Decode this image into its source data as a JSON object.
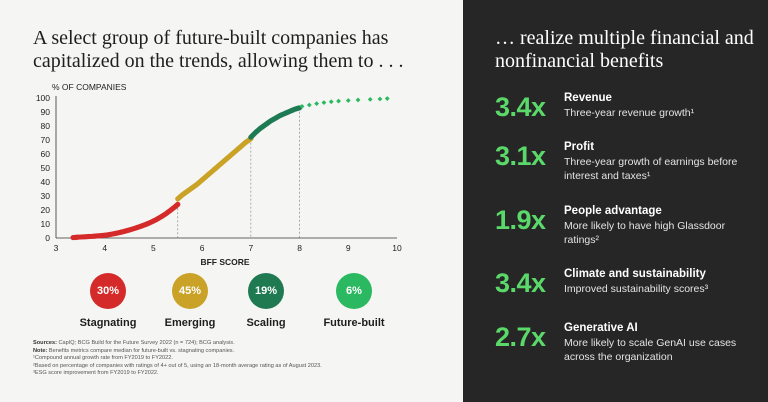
{
  "left": {
    "headline": "A select group of future-built companies has capitalized on the trends, allowing them to . . ."
  },
  "right": {
    "headline": "… realize multiple financial and nonfinancial benefits",
    "metrics": [
      {
        "value": "3.4x",
        "name": "Revenue",
        "desc": "Three-year revenue growth¹"
      },
      {
        "value": "3.1x",
        "name": "Profit",
        "desc": "Three-year growth of earnings before interest and taxes¹"
      },
      {
        "value": "1.9x",
        "name": "People advantage",
        "desc": "More likely to have high Glassdoor ratings²"
      },
      {
        "value": "3.4x",
        "name": "Climate and sustainability",
        "desc": "Improved sustainability scores³"
      },
      {
        "value": "2.7x",
        "name": "Generative AI",
        "desc": "More likely to scale GenAI use cases across the organization"
      }
    ]
  },
  "segments": [
    {
      "pct": "30%",
      "label": "Stagnating",
      "color": "#d42a2a"
    },
    {
      "pct": "45%",
      "label": "Emerging",
      "color": "#c9a227"
    },
    {
      "pct": "19%",
      "label": "Scaling",
      "color": "#1f7a52"
    },
    {
      "pct": "6%",
      "label": "Future-built",
      "color": "#2ab860"
    }
  ],
  "notes": {
    "sources_label": "Sources:",
    "sources_text": " CapIQ; BCG Build for the Future Survey 2022 (n = 724); BCG analysis.",
    "note_label": "Note:",
    "note_text": " Benefits metrics compare median for future-built vs. stagnating companies.",
    "fn1": "¹Compound annual growth rate from FY2019 to FY2022.",
    "fn2": "²Based on percentage of companies with ratings of 4+ out of 5, using an 18-month average rating as of August 2023.",
    "fn3": "³ESG score improvement from FY2019 to FY2022."
  },
  "chart_data": {
    "type": "scatter",
    "title": "",
    "xlabel": "BFF SCORE",
    "ylabel": "% OF COMPANIES",
    "xlim": [
      3,
      10
    ],
    "ylim": [
      0,
      100
    ],
    "xticks": [
      3,
      4,
      5,
      6,
      7,
      8,
      9,
      10
    ],
    "yticks": [
      0,
      10,
      20,
      30,
      40,
      50,
      60,
      70,
      80,
      90,
      100
    ],
    "thresholds": [
      5.5,
      7,
      8
    ],
    "grid": false,
    "series": [
      {
        "name": "Stagnating",
        "color": "#d42a2a",
        "points": [
          [
            3.35,
            0.3
          ],
          [
            3.45,
            0.6
          ],
          [
            3.6,
            0.9
          ],
          [
            3.75,
            1.2
          ],
          [
            3.85,
            1.5
          ],
          [
            3.95,
            1.8
          ],
          [
            4.05,
            2.2
          ],
          [
            4.15,
            2.8
          ],
          [
            4.25,
            3.5
          ],
          [
            4.35,
            4.3
          ],
          [
            4.45,
            5.2
          ],
          [
            4.55,
            6.2
          ],
          [
            4.65,
            7.3
          ],
          [
            4.75,
            8.5
          ],
          [
            4.85,
            9.8
          ],
          [
            4.95,
            11.3
          ],
          [
            5.05,
            13
          ],
          [
            5.15,
            15
          ],
          [
            5.25,
            17.2
          ],
          [
            5.35,
            19.8
          ],
          [
            5.45,
            22.5
          ],
          [
            5.5,
            24
          ]
        ]
      },
      {
        "name": "Emerging",
        "color": "#c9a227",
        "points": [
          [
            5.5,
            28
          ],
          [
            5.6,
            31
          ],
          [
            5.7,
            33.5
          ],
          [
            5.8,
            36
          ],
          [
            5.9,
            38.5
          ],
          [
            6.0,
            41.5
          ],
          [
            6.1,
            44.5
          ],
          [
            6.2,
            47.5
          ],
          [
            6.3,
            50.5
          ],
          [
            6.4,
            53.5
          ],
          [
            6.5,
            56.5
          ],
          [
            6.6,
            59.5
          ],
          [
            6.7,
            62.5
          ],
          [
            6.8,
            65.5
          ],
          [
            6.9,
            68.5
          ],
          [
            7.0,
            71
          ]
        ]
      },
      {
        "name": "Scaling",
        "color": "#1f7a52",
        "points": [
          [
            7.0,
            72
          ],
          [
            7.1,
            75.5
          ],
          [
            7.2,
            78.5
          ],
          [
            7.3,
            81
          ],
          [
            7.4,
            83.5
          ],
          [
            7.5,
            85.5
          ],
          [
            7.6,
            87.5
          ],
          [
            7.7,
            89
          ],
          [
            7.8,
            90.5
          ],
          [
            7.9,
            92
          ],
          [
            8.0,
            93
          ]
        ]
      },
      {
        "name": "Future-built",
        "color": "#2ab860",
        "points": [
          [
            8.05,
            94
          ],
          [
            8.2,
            95
          ],
          [
            8.35,
            96
          ],
          [
            8.5,
            96.7
          ],
          [
            8.65,
            97.3
          ],
          [
            8.8,
            97.8
          ],
          [
            9.0,
            98.2
          ],
          [
            9.2,
            98.6
          ],
          [
            9.45,
            99
          ],
          [
            9.65,
            99.3
          ],
          [
            9.8,
            99.6
          ]
        ]
      }
    ]
  }
}
